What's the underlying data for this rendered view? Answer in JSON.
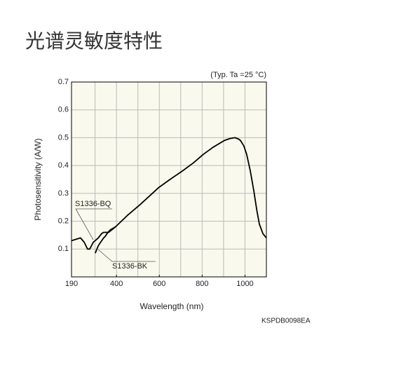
{
  "header": {
    "title": "光谱灵敏度特性"
  },
  "chart_data": {
    "type": "line",
    "condition": "(Typ. Ta =25 °C)",
    "xlabel": "Wavelength (nm)",
    "ylabel": "Photosensitivity (A/W)",
    "code": "KSPDB0098EA",
    "xlim": [
      190,
      1100
    ],
    "ylim": [
      0,
      0.7
    ],
    "xticks": [
      190,
      400,
      600,
      800,
      1000
    ],
    "xgrid": [
      300,
      400,
      500,
      600,
      700,
      800,
      900,
      1000
    ],
    "yticks": [
      0.1,
      0.2,
      0.3,
      0.4,
      0.5,
      0.6,
      0.7
    ],
    "grid": true,
    "series": [
      {
        "name": "S1336-BQ",
        "color": "#000000",
        "x": [
          190,
          232,
          249,
          265,
          275,
          282,
          292,
          300,
          315,
          330,
          340,
          350,
          363,
          396,
          450,
          511,
          596,
          650,
          707,
          760,
          805,
          850,
          904,
          930,
          953,
          970,
          979,
          995,
          1008,
          1025,
          1041,
          1055,
          1067,
          1084,
          1100
        ],
        "values": [
          0.13,
          0.14,
          0.125,
          0.1,
          0.1,
          0.11,
          0.125,
          0.13,
          0.14,
          0.155,
          0.16,
          0.16,
          0.16,
          0.18,
          0.22,
          0.26,
          0.32,
          0.35,
          0.38,
          0.41,
          0.44,
          0.465,
          0.49,
          0.497,
          0.5,
          0.495,
          0.49,
          0.47,
          0.44,
          0.38,
          0.31,
          0.24,
          0.19,
          0.155,
          0.14
        ]
      },
      {
        "name": "S1336-BK",
        "color": "#000000",
        "x": [
          301,
          306,
          314,
          322,
          331,
          340,
          347,
          360,
          373,
          385,
          396
        ],
        "values": [
          0.085,
          0.095,
          0.11,
          0.12,
          0.13,
          0.14,
          0.145,
          0.16,
          0.17,
          0.175,
          0.18
        ]
      }
    ]
  }
}
